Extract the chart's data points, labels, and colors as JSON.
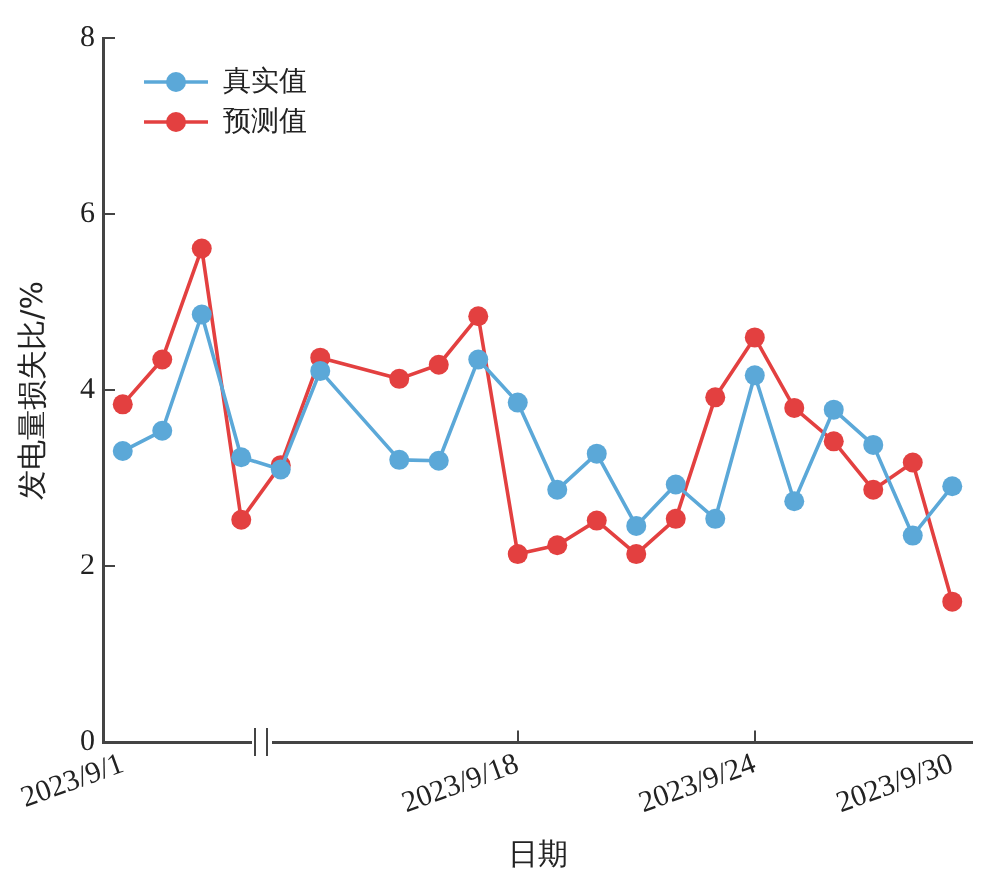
{
  "chart_data": {
    "type": "line",
    "xlabel": "日期",
    "ylabel": "发电量损失比/%",
    "categories": [
      "2023/9/1",
      null,
      null,
      null,
      null,
      null,
      null,
      null,
      null,
      null,
      "2023/9/18",
      null,
      null,
      null,
      null,
      null,
      "2023/9/24",
      null,
      null,
      null,
      null,
      "2023/9/30"
    ],
    "series": [
      {
        "name": "真实值",
        "color": "#5ba8d8",
        "values": [
          3.31,
          3.54,
          4.86,
          3.24,
          3.1,
          4.22,
          null,
          3.21,
          3.2,
          4.35,
          3.86,
          2.87,
          3.28,
          2.46,
          2.93,
          2.54,
          4.17,
          2.74,
          3.78,
          3.38,
          2.35,
          2.91
        ]
      },
      {
        "name": "预测值",
        "color": "#e34040",
        "values": [
          3.84,
          4.35,
          5.61,
          2.53,
          3.15,
          4.37,
          null,
          4.13,
          4.29,
          4.84,
          2.14,
          2.24,
          2.52,
          2.14,
          2.54,
          3.92,
          4.6,
          3.8,
          3.42,
          2.87,
          3.18,
          1.6
        ]
      }
    ],
    "ylim": [
      0,
      8
    ],
    "yticks": [
      0,
      2,
      4,
      6,
      8
    ],
    "grid": false,
    "legend": "top left",
    "marker": "circle",
    "line_style": "solid"
  }
}
